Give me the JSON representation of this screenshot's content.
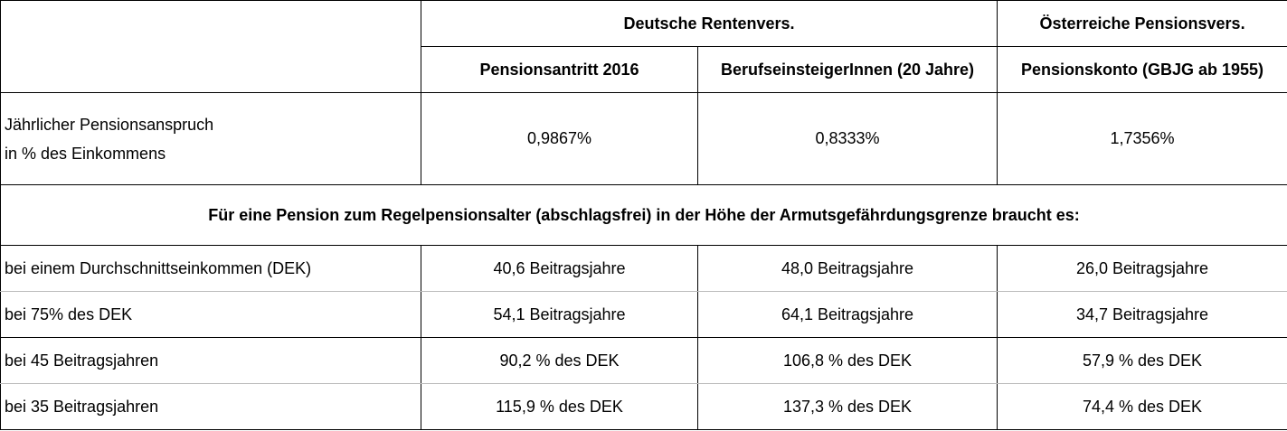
{
  "header": {
    "group_de": "Deutsche Rentenvers.",
    "group_at": "Österreiche Pensionsvers.",
    "col_1": "Pensionsantritt 2016",
    "col_2": "BerufseinsteigerInnen (20 Jahre)",
    "col_3": "Pensionskonto (GBJG ab 1955)"
  },
  "pct_row": {
    "label_line1": "Jährlicher Pensionsanspruch",
    "label_line2": "in % des Einkommens",
    "values": [
      "0,9867%",
      "0,8333%",
      "1,7356%"
    ]
  },
  "banner": "Für eine Pension zum Regelpensionsalter (abschlagsfrei) in der Höhe der Armutsgefährdungsgrenze braucht es:",
  "rows": [
    {
      "label": "bei einem Durchschnittseinkommen (DEK)",
      "values": [
        "40,6 Beitragsjahre",
        "48,0 Beitragsjahre",
        "26,0 Beitragsjahre"
      ]
    },
    {
      "label": "bei 75% des DEK",
      "values": [
        "54,1 Beitragsjahre",
        "64,1 Beitragsjahre",
        "34,7 Beitragsjahre"
      ]
    },
    {
      "label": "bei 45 Beitragsjahren",
      "values": [
        "90,2 % des DEK",
        "106,8 % des DEK",
        "57,9 % des DEK"
      ]
    },
    {
      "label": "bei 35 Beitragsjahren",
      "values": [
        "115,9 % des DEK",
        "137,3 % des DEK",
        "74,4 % des DEK"
      ]
    }
  ]
}
